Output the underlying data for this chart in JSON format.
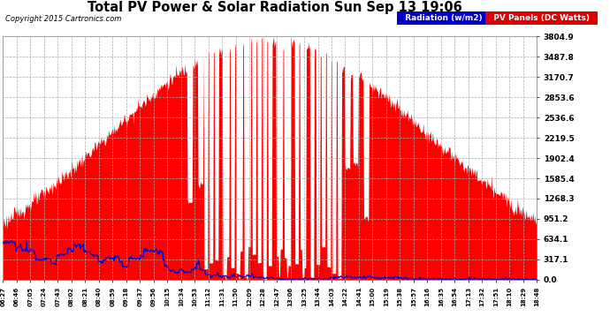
{
  "title": "Total PV Power & Solar Radiation Sun Sep 13 19:06",
  "copyright": "Copyright 2015 Cartronics.com",
  "plot_bg": "#ffffff",
  "fig_bg": "#ffffff",
  "ytick_values": [
    0.0,
    317.1,
    634.1,
    951.2,
    1268.3,
    1585.4,
    1902.4,
    2219.5,
    2536.6,
    2853.6,
    3170.7,
    3487.8,
    3804.9
  ],
  "ymax": 3804.9,
  "legend_rad_label": "Radiation (w/m2)",
  "legend_pv_label": "PV Panels (DC Watts)",
  "rad_line_color": "#0000cc",
  "pv_fill_color": "#ff0000",
  "rad_legend_bg": "#0000cc",
  "pv_legend_bg": "#dd0000",
  "grid_color": "#aaaaaa",
  "xtick_labels": [
    "06:27",
    "06:46",
    "07:05",
    "07:24",
    "07:43",
    "08:02",
    "08:21",
    "08:40",
    "08:59",
    "09:18",
    "09:37",
    "09:56",
    "10:15",
    "10:34",
    "10:53",
    "11:12",
    "11:31",
    "11:50",
    "12:09",
    "12:28",
    "12:47",
    "13:06",
    "13:25",
    "13:44",
    "14:03",
    "14:22",
    "14:41",
    "15:00",
    "15:19",
    "15:38",
    "15:57",
    "16:16",
    "16:35",
    "16:54",
    "17:13",
    "17:32",
    "17:51",
    "18:10",
    "18:29",
    "18:48"
  ]
}
